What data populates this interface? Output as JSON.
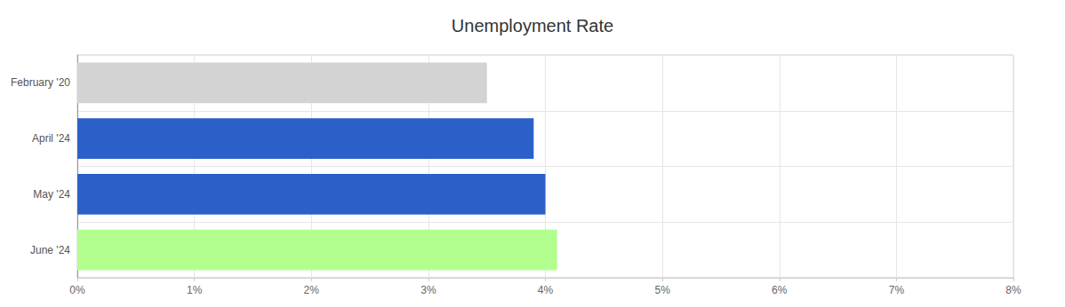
{
  "chart_data": {
    "type": "bar",
    "title": "Unemployment Rate",
    "orientation": "horizontal",
    "categories": [
      "February '20",
      "April '24",
      "May '24",
      "June '24"
    ],
    "values": [
      3.5,
      3.9,
      4.0,
      4.1
    ],
    "colors": [
      "#d3d3d3",
      "#2a60c8",
      "#2a60c8",
      "#b2ff8f"
    ],
    "xlim": [
      0,
      8
    ],
    "xticks": [
      {
        "value": 0,
        "label": "0%"
      },
      {
        "value": 1,
        "label": "1%"
      },
      {
        "value": 2,
        "label": "2%"
      },
      {
        "value": 3,
        "label": "3%"
      },
      {
        "value": 4,
        "label": "4%"
      },
      {
        "value": 5,
        "label": "5%"
      },
      {
        "value": 6,
        "label": "6%"
      },
      {
        "value": 7,
        "label": "7%"
      },
      {
        "value": 8,
        "label": "8%"
      }
    ],
    "grid": true
  }
}
